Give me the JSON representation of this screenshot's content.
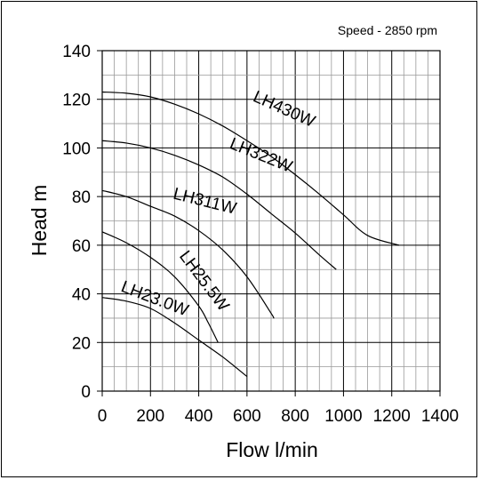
{
  "chart_data": {
    "type": "line",
    "note": "Speed - 2850 rpm",
    "xlabel": "Flow l/min",
    "ylabel": "Head m",
    "xlim": [
      0,
      1400
    ],
    "ylim": [
      0,
      140
    ],
    "x_ticks": [
      "0",
      "200",
      "400",
      "600",
      "800",
      "1000",
      "1200",
      "1400"
    ],
    "y_ticks": [
      "0",
      "20",
      "40",
      "60",
      "80",
      "100",
      "120",
      "140"
    ],
    "grid": true,
    "series": [
      {
        "name": "LH430W",
        "points": [
          [
            0,
            123
          ],
          [
            100,
            122.5
          ],
          [
            200,
            121
          ],
          [
            300,
            118
          ],
          [
            400,
            114
          ],
          [
            500,
            109
          ],
          [
            600,
            103
          ],
          [
            700,
            96.5
          ],
          [
            800,
            89
          ],
          [
            900,
            81
          ],
          [
            1000,
            72.5
          ],
          [
            1100,
            64
          ],
          [
            1230,
            60
          ]
        ]
      },
      {
        "name": "LH322W",
        "points": [
          [
            0,
            103
          ],
          [
            100,
            102
          ],
          [
            200,
            100
          ],
          [
            300,
            97
          ],
          [
            400,
            93
          ],
          [
            500,
            88
          ],
          [
            600,
            81
          ],
          [
            700,
            73
          ],
          [
            800,
            65
          ],
          [
            900,
            56
          ],
          [
            970,
            50
          ]
        ]
      },
      {
        "name": "LH311W",
        "points": [
          [
            0,
            82.5
          ],
          [
            100,
            80
          ],
          [
            200,
            76
          ],
          [
            300,
            72
          ],
          [
            400,
            66
          ],
          [
            500,
            58
          ],
          [
            600,
            47
          ],
          [
            700,
            32
          ],
          [
            710,
            30
          ]
        ]
      },
      {
        "name": "LH25.5W",
        "points": [
          [
            0,
            65.5
          ],
          [
            100,
            61
          ],
          [
            200,
            55
          ],
          [
            300,
            47
          ],
          [
            400,
            35
          ],
          [
            440,
            28
          ],
          [
            480,
            20
          ]
        ]
      },
      {
        "name": "LH23.0W",
        "points": [
          [
            0,
            38.5
          ],
          [
            100,
            37
          ],
          [
            200,
            34
          ],
          [
            300,
            28
          ],
          [
            400,
            21
          ],
          [
            500,
            14
          ],
          [
            600,
            6
          ]
        ]
      }
    ]
  }
}
